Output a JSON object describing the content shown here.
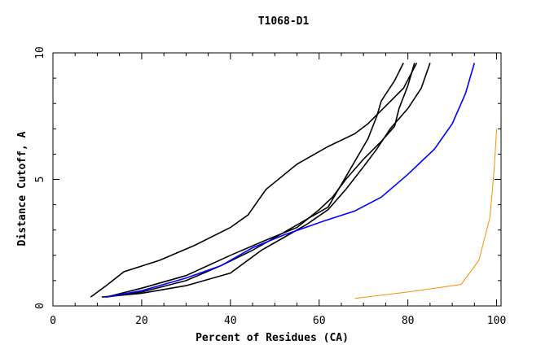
{
  "chart_data": {
    "type": "line",
    "title": "T1068-D1",
    "xlabel": "Percent of Residues (CA)",
    "ylabel": "Distance Cutoff, A",
    "xlim": [
      0,
      101
    ],
    "ylim": [
      0,
      10
    ],
    "x_ticks": [
      0,
      20,
      40,
      60,
      80,
      100
    ],
    "y_ticks": [
      0,
      5,
      10
    ],
    "grid": false,
    "legend": "none",
    "colors": {
      "models": "#ff8c00",
      "highlighted": "#000000",
      "best": "#0000ff",
      "frame": "#000000"
    },
    "series": [
      {
        "color": "#0000ff",
        "x": [
          12,
          20,
          30,
          38,
          45,
          52,
          61,
          68,
          74,
          80,
          86,
          90,
          93,
          95
        ],
        "y": [
          0.35,
          0.6,
          1.1,
          1.6,
          2.3,
          2.8,
          3.35,
          3.75,
          4.3,
          5.2,
          6.2,
          7.2,
          8.4,
          9.6
        ]
      },
      {
        "color": "#000000",
        "x": [
          8.5,
          12,
          16,
          24,
          32,
          40,
          44,
          48,
          55,
          62,
          68,
          71,
          75,
          79,
          82
        ],
        "y": [
          0.35,
          0.8,
          1.35,
          1.8,
          2.4,
          3.1,
          3.6,
          4.6,
          5.6,
          6.3,
          6.8,
          7.2,
          7.9,
          8.6,
          9.6
        ]
      },
      {
        "color": "#000000",
        "x": [
          11,
          20,
          30,
          40,
          47,
          52,
          57,
          62,
          66,
          70,
          73,
          76,
          80,
          83,
          85
        ],
        "y": [
          0.35,
          0.5,
          0.8,
          1.3,
          2.2,
          2.7,
          3.2,
          3.8,
          4.6,
          5.5,
          6.2,
          7.0,
          7.8,
          8.6,
          9.6
        ]
      },
      {
        "color": "#000000",
        "x": [
          12,
          20,
          30,
          38,
          45,
          52,
          58,
          62,
          65,
          68,
          71,
          73,
          74,
          77,
          79
        ],
        "y": [
          0.35,
          0.55,
          1.0,
          1.6,
          2.2,
          2.9,
          3.5,
          3.9,
          4.8,
          5.7,
          6.6,
          7.5,
          8.1,
          8.9,
          9.6
        ]
      },
      {
        "color": "#000000",
        "x": [
          12,
          20,
          30,
          40,
          48,
          55,
          60,
          63,
          66,
          70,
          74,
          77,
          78,
          80,
          81.5
        ],
        "y": [
          0.35,
          0.7,
          1.2,
          2.0,
          2.6,
          3.1,
          3.8,
          4.3,
          5.0,
          5.8,
          6.5,
          7.1,
          7.8,
          8.7,
          9.6
        ]
      },
      {
        "color": "#ff8c00",
        "x": [
          68,
          80,
          92,
          96,
          98.5,
          99.5,
          100
        ],
        "y": [
          0.3,
          0.55,
          0.85,
          1.8,
          3.5,
          5.5,
          7.0
        ]
      }
    ]
  }
}
